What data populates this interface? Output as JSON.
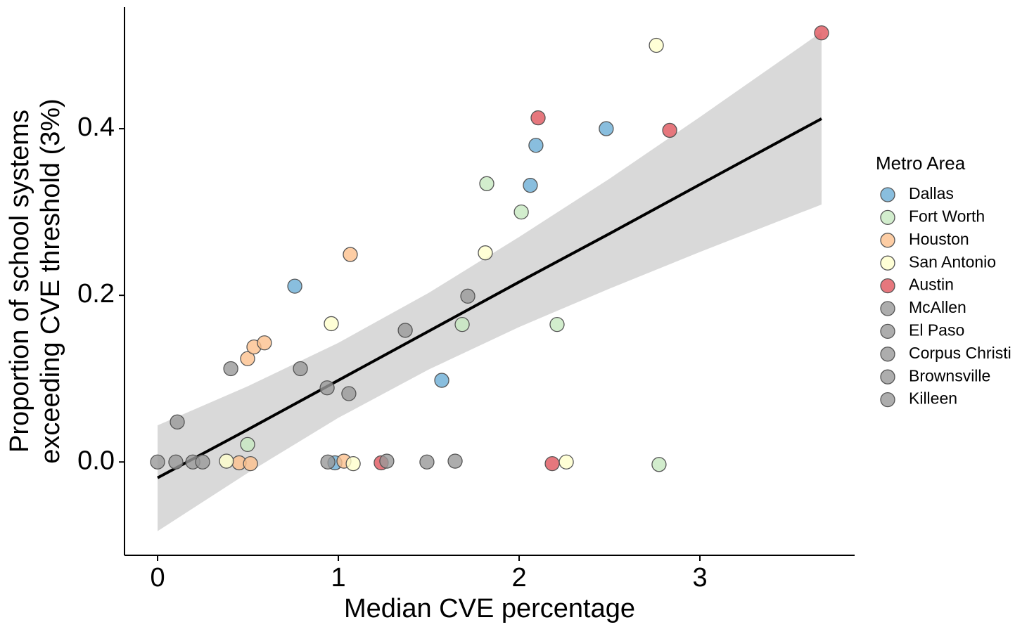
{
  "chart_data": {
    "type": "scatter",
    "xlabel": "Median CVE percentage",
    "ylabel": [
      "Proportion of school systems",
      "exceeding CVE threshold (3%)"
    ],
    "legend_title": "Metro Area",
    "xlim": [
      -0.183,
      3.856
    ],
    "ylim": [
      -0.112,
      0.546
    ],
    "xticks": [
      0,
      1,
      2,
      3
    ],
    "yticks": [
      {
        "value": 0,
        "label": "0.0"
      },
      {
        "value": 0.2,
        "label": "0.2"
      },
      {
        "value": 0.4,
        "label": "0.4"
      }
    ],
    "series": [
      {
        "name": "Dallas",
        "color": "#6baed6",
        "x": [
          2.482,
          2.093,
          2.062,
          0.759,
          1.572,
          0.981
        ],
        "values": [
          0.4,
          0.38,
          0.332,
          0.211,
          0.098,
          -0.001
        ]
      },
      {
        "name": "Fort Worth",
        "color": "#c7e9c0",
        "x": [
          1.821,
          2.012,
          1.685,
          2.21,
          2.774,
          0.498
        ],
        "values": [
          0.334,
          0.3,
          0.165,
          0.165,
          -0.003,
          0.021
        ]
      },
      {
        "name": "Houston",
        "color": "#fdc18d",
        "x": [
          1.066,
          0.498,
          0.533,
          0.591,
          0.451,
          0.514,
          1.031
        ],
        "values": [
          0.249,
          0.124,
          0.138,
          0.143,
          -0.001,
          -0.002,
          0.001
        ]
      },
      {
        "name": "San Antonio",
        "color": "#ffffcc",
        "x": [
          2.759,
          1.813,
          0.961,
          0.381,
          1.082,
          2.261
        ],
        "values": [
          0.5,
          0.251,
          0.166,
          0.001,
          -0.002,
          0
        ]
      },
      {
        "name": "Austin",
        "color": "#e0555c",
        "x": [
          3.673,
          2.105,
          2.833,
          2.183,
          1.237
        ],
        "values": [
          0.515,
          0.413,
          0.398,
          -0.002,
          -0.001
        ]
      },
      {
        "name": "McAllen",
        "color": "#999999",
        "x": [
          0,
          0.101,
          0.109
        ],
        "values": [
          0,
          0,
          0.048
        ]
      },
      {
        "name": "El Paso",
        "color": "#999999",
        "x": [
          0.195,
          0.249,
          0.405
        ],
        "values": [
          0,
          0,
          0.112
        ]
      },
      {
        "name": "Corpus Christi",
        "color": "#999999",
        "x": [
          0.79,
          0.938,
          0.942
        ],
        "values": [
          0.112,
          0.089,
          0
        ]
      },
      {
        "name": "Brownsville",
        "color": "#999999",
        "x": [
          1.268,
          1.49,
          1.37
        ],
        "values": [
          0.001,
          0,
          0.158
        ]
      },
      {
        "name": "Killeen",
        "color": "#999999",
        "x": [
          1.646,
          1.716,
          1.058
        ],
        "values": [
          0.001,
          0.199,
          0.082
        ]
      }
    ],
    "fit": {
      "color": "#000000",
      "band_color": "#d9d9d9",
      "x": [
        0,
        0.5,
        1,
        1.5,
        2,
        2.5,
        3,
        3.673
      ],
      "values": [
        -0.019,
        0.039,
        0.098,
        0.157,
        0.216,
        0.274,
        0.333,
        0.412
      ],
      "lower": [
        -0.083,
        -0.013,
        0.053,
        0.111,
        0.162,
        0.208,
        0.252,
        0.309
      ],
      "upper": [
        0.044,
        0.091,
        0.143,
        0.203,
        0.27,
        0.34,
        0.414,
        0.516
      ]
    }
  }
}
